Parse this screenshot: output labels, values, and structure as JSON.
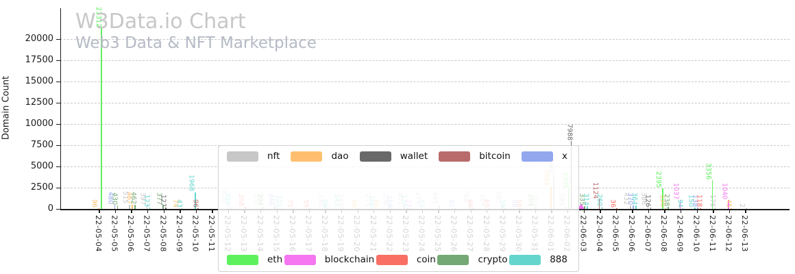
{
  "watermark": {
    "title": "W3Data.io Chart",
    "subtitle": "Web3 Data & NFT Marketplace"
  },
  "colors": {
    "nft": "#c7c7c7",
    "dao": "#fdbf6f",
    "wallet": "#696969",
    "bitcoin": "#b96b6b",
    "x": "#93a7ee",
    "eth": "#5ef15e",
    "blockchain": "#f576f0",
    "coin": "#f96f63",
    "crypto": "#74a874",
    "888": "#63d5cd",
    "axis": "#1a1a1a",
    "grid": "#c8c8c8"
  },
  "legend": {
    "row1": [
      {
        "label": "nft"
      },
      {
        "label": "dao"
      },
      {
        "label": "wallet"
      },
      {
        "label": "bitcoin"
      },
      {
        "label": "x"
      }
    ],
    "row2": [
      {
        "label": "eth"
      },
      {
        "label": "blockchain"
      },
      {
        "label": "coin"
      },
      {
        "label": "crypto"
      },
      {
        "label": "888"
      }
    ]
  },
  "chart_data": {
    "type": "bar",
    "title": "W3Data.io Chart",
    "subtitle": "Web3 Data & NFT Marketplace",
    "xlabel": "",
    "ylabel": "Domain Count",
    "ylim": [
      0,
      21500
    ],
    "yticks": [
      0,
      2500,
      5000,
      7500,
      10000,
      12500,
      15000,
      17500,
      20000
    ],
    "grid": "horizontal-dashed",
    "legend_position": "center-overlay",
    "categories": [
      "22-05-04",
      "22-05-05",
      "22-05-06",
      "22-05-07",
      "22-05-08",
      "22-05-09",
      "22-05-10",
      "22-05-11",
      "22-05-12",
      "22-05-13",
      "22-05-14",
      "22-05-15",
      "22-05-16",
      "22-05-17",
      "22-05-18",
      "22-05-19",
      "22-05-20",
      "22-05-21",
      "22-05-22",
      "22-05-23",
      "22-05-24",
      "22-05-25",
      "22-05-26",
      "22-05-27",
      "22-05-28",
      "22-05-29",
      "22-05-30",
      "22-05-31",
      "22-06-01",
      "22-06-02",
      "22-06-03",
      "22-06-04",
      "22-06-05",
      "22-06-06",
      "22-06-07",
      "22-06-08",
      "22-06-09",
      "22-06-10",
      "22-06-11",
      "22-06-12",
      "22-06-13"
    ],
    "points": [
      {
        "date": "22-05-04",
        "series": "dao",
        "value": 96
      },
      {
        "date": "22-05-04",
        "series": "eth",
        "value": 21312
      },
      {
        "date": "22-05-05",
        "series": "x",
        "value": 480
      },
      {
        "date": "22-05-05",
        "series": "crypto",
        "value": 430
      },
      {
        "date": "22-05-06",
        "series": "nft",
        "value": 515
      },
      {
        "date": "22-05-06",
        "series": "dao",
        "value": 467
      },
      {
        "date": "22-05-06",
        "series": "crypto",
        "value": 462
      },
      {
        "date": "22-05-07",
        "series": "nft",
        "value": 397
      },
      {
        "date": "22-05-07",
        "series": "888",
        "value": 123
      },
      {
        "date": "22-05-08",
        "series": "crypto",
        "value": 377
      },
      {
        "date": "22-05-08",
        "series": "wallet",
        "value": 127
      },
      {
        "date": "22-05-09",
        "series": "dao",
        "value": 74
      },
      {
        "date": "22-05-09",
        "series": "888",
        "value": 43
      },
      {
        "date": "22-05-10",
        "series": "888",
        "value": 1968
      },
      {
        "date": "22-05-10",
        "series": "bitcoin",
        "value": 96
      },
      {
        "date": "22-05-12",
        "series": "nft",
        "value": 670
      },
      {
        "date": "22-05-12",
        "series": "888",
        "value": 356
      },
      {
        "date": "22-05-13",
        "series": "coin",
        "value": 208
      },
      {
        "date": "22-05-14",
        "series": "nft",
        "value": 210
      },
      {
        "date": "22-05-14",
        "series": "crypto",
        "value": 304
      },
      {
        "date": "22-05-15",
        "series": "x",
        "value": 346
      },
      {
        "date": "22-05-15",
        "series": "nft",
        "value": 188
      },
      {
        "date": "22-05-15",
        "series": "888",
        "value": 101
      },
      {
        "date": "22-05-16",
        "series": "coin",
        "value": 75
      },
      {
        "date": "22-05-17",
        "series": "coin",
        "value": 59
      },
      {
        "date": "22-05-18",
        "series": "nft",
        "value": 236
      },
      {
        "date": "22-05-18",
        "series": "888",
        "value": 98
      },
      {
        "date": "22-05-19",
        "series": "888",
        "value": 243
      },
      {
        "date": "22-05-19",
        "series": "nft",
        "value": 240
      },
      {
        "date": "22-05-20",
        "series": "dao",
        "value": 66
      },
      {
        "date": "22-05-21",
        "series": "nft",
        "value": 215
      },
      {
        "date": "22-05-21",
        "series": "888",
        "value": 100
      },
      {
        "date": "22-05-21",
        "series": "dao",
        "value": 86
      },
      {
        "date": "22-05-22",
        "series": "nft",
        "value": 296
      },
      {
        "date": "22-05-22",
        "series": "x",
        "value": 108
      },
      {
        "date": "22-05-23",
        "series": "nft",
        "value": 401
      },
      {
        "date": "22-05-23",
        "series": "888",
        "value": 138
      },
      {
        "date": "22-05-23",
        "series": "blockchain",
        "value": 17
      },
      {
        "date": "22-05-24",
        "series": "nft",
        "value": 475
      },
      {
        "date": "22-05-24",
        "series": "888",
        "value": 51
      },
      {
        "date": "22-05-25",
        "series": "nft",
        "value": 465
      },
      {
        "date": "22-05-26",
        "series": "x",
        "value": 91
      },
      {
        "date": "22-05-27",
        "series": "nft",
        "value": 706
      },
      {
        "date": "22-05-27",
        "series": "coin",
        "value": 60
      },
      {
        "date": "22-05-28",
        "series": "nft",
        "value": 204
      },
      {
        "date": "22-05-28",
        "series": "coin",
        "value": 65
      },
      {
        "date": "22-05-29",
        "series": "nft",
        "value": 567
      },
      {
        "date": "22-05-29",
        "series": "888",
        "value": 59
      },
      {
        "date": "22-05-30",
        "series": "x",
        "value": 68
      },
      {
        "date": "22-05-30",
        "series": "coin",
        "value": 58
      },
      {
        "date": "22-05-31",
        "series": "crypto",
        "value": 209
      },
      {
        "date": "22-05-31",
        "series": "nft",
        "value": 203
      },
      {
        "date": "22-06-01",
        "series": "dao",
        "value": 2682
      },
      {
        "date": "22-06-01",
        "series": "nft",
        "value": 3900
      },
      {
        "date": "22-06-02",
        "series": "nft",
        "value": 289
      },
      {
        "date": "22-06-02",
        "series": "eth",
        "value": 2305
      },
      {
        "date": "22-06-02",
        "series": "wallet",
        "value": 7988
      },
      {
        "date": "22-06-03",
        "series": "blockchain",
        "value": 90,
        "marker": "triangle",
        "label": ""
      },
      {
        "date": "22-06-03",
        "series": "crypto",
        "value": 335
      },
      {
        "date": "22-06-03",
        "series": "888",
        "value": 314
      },
      {
        "date": "22-06-04",
        "series": "bitcoin",
        "value": 1124
      },
      {
        "date": "22-06-04",
        "series": "888",
        "value": 260
      },
      {
        "date": "22-06-05",
        "series": "coin",
        "value": 36
      },
      {
        "date": "22-06-06",
        "series": "nft",
        "value": 432
      },
      {
        "date": "22-06-06",
        "series": "x",
        "value": 370
      },
      {
        "date": "22-06-06",
        "series": "888",
        "value": 364
      },
      {
        "date": "22-06-07",
        "series": "nft",
        "value": 386
      },
      {
        "date": "22-06-07",
        "series": "wallet",
        "value": 126
      },
      {
        "date": "22-06-08",
        "series": "eth",
        "value": 2395
      },
      {
        "date": "22-06-08",
        "series": "dao",
        "value": 120
      },
      {
        "date": "22-06-08",
        "series": "crypto",
        "value": 238
      },
      {
        "date": "22-06-09",
        "series": "blockchain",
        "value": 1037
      },
      {
        "date": "22-06-09",
        "series": "888",
        "value": 94
      },
      {
        "date": "22-06-10",
        "series": "888",
        "value": 150
      },
      {
        "date": "22-06-10",
        "series": "x",
        "value": 138
      },
      {
        "date": "22-06-10",
        "series": "coin",
        "value": 118
      },
      {
        "date": "22-06-11",
        "series": "eth",
        "value": 3356
      },
      {
        "date": "22-06-11",
        "series": "nft",
        "value": 178
      },
      {
        "date": "22-06-12",
        "series": "blockchain",
        "value": 1040
      },
      {
        "date": "22-06-12",
        "series": "dao",
        "value": 45
      },
      {
        "date": "22-06-13",
        "series": "nft",
        "value": 2
      }
    ]
  }
}
